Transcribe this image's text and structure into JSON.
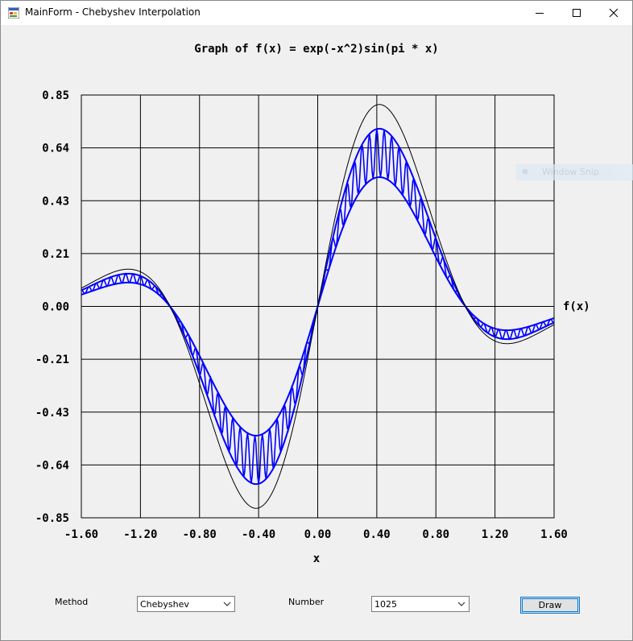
{
  "window": {
    "title": "MainForm - Chebyshev Interpolation"
  },
  "chart_data": {
    "type": "line",
    "title": "Graph of f(x) = exp(-x^2)sin(pi * x)",
    "xlabel": "x",
    "ylabel": "f(x)",
    "xlim": [
      -1.6,
      1.6
    ],
    "ylim": [
      -0.85,
      0.85
    ],
    "x_ticks": [
      "-1.60",
      "-1.20",
      "-0.80",
      "-0.40",
      "0.00",
      "0.40",
      "0.80",
      "1.20",
      "1.60"
    ],
    "y_ticks": [
      "0.85",
      "0.64",
      "0.43",
      "0.21",
      "0.00",
      "-0.21",
      "-0.43",
      "-0.64",
      "-0.85"
    ],
    "grid": true,
    "series": [
      {
        "function": "exp(-x^2)*sin(pi*x)",
        "color": "#000000"
      },
      {
        "function": "interpolated band",
        "color": "#0000ff",
        "band_lower_factor": 0.64,
        "band_upper_factor": 0.88,
        "oscillations": 64
      }
    ]
  },
  "controls": {
    "method_label": "Method",
    "method_value": "Chebyshev",
    "number_label": "Number",
    "number_value": "1025",
    "draw_label": "Draw"
  },
  "overlay": {
    "label": "Window Snip"
  }
}
